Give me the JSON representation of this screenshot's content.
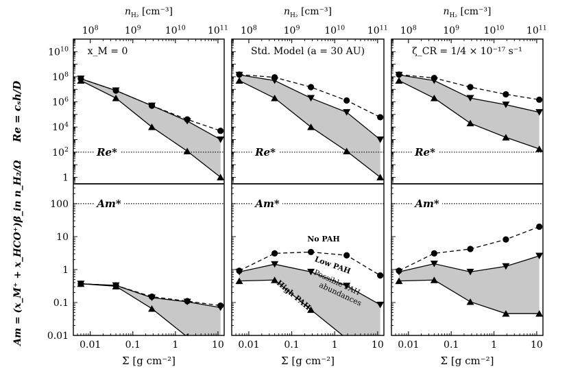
{
  "chart_data": {
    "type": "line",
    "axes_text": {
      "top_xlabel_main": "n",
      "top_xlabel_sub": "H₂",
      "top_xlabel_unit": "[cm⁻³]",
      "top_ticks": [
        {
          "base": "10",
          "exp": "8",
          "n": 100000000.0
        },
        {
          "base": "10",
          "exp": "9",
          "n": 1000000000.0
        },
        {
          "base": "10",
          "exp": "10",
          "n": 10000000000.0
        },
        {
          "base": "10",
          "exp": "11",
          "n": 100000000000.0
        }
      ],
      "xlabel": "Σ [g cm⁻²]",
      "x_ticks": [
        "0.01",
        "0.1",
        "1",
        "10"
      ],
      "re_ylabel": "Re = cₛh/D",
      "am_ylabel": "Am = (x_M⁺ + x_HCO⁺)β_in n_H₂/Ω",
      "re_ticks": [
        {
          "v": 10000000000.0,
          "base": "10",
          "exp": "10"
        },
        {
          "v": 100000000.0,
          "base": "10",
          "exp": "8"
        },
        {
          "v": 1000000.0,
          "base": "10",
          "exp": "6"
        },
        {
          "v": 10000.0,
          "base": "10",
          "exp": "4"
        },
        {
          "v": 100.0,
          "base": "10",
          "exp": "2"
        },
        {
          "v": 1,
          "base": "1",
          "exp": ""
        }
      ],
      "am_ticks": [
        {
          "v": 100,
          "label": "100"
        },
        {
          "v": 10,
          "label": "10"
        },
        {
          "v": 1,
          "label": "1"
        },
        {
          "v": 0.1,
          "label": "0.1"
        },
        {
          "v": 0.01,
          "label": "0.01"
        }
      ]
    },
    "x_scale": "log",
    "xlim": [
      0.004,
      14
    ],
    "re_ylim": [
      0.3,
      100000000000.0
    ],
    "am_ylim": [
      0.01,
      400
    ],
    "sigma": [
      0.006,
      0.04,
      0.28,
      1.9,
      11.5
    ],
    "nh2_per_sigma": 10000000000.0,
    "thresholds": {
      "re_star": 100,
      "am_star": 100,
      "re_star_label": "Re*",
      "am_star_label": "Am*"
    },
    "fill_color": "#c8c8c8",
    "panels": [
      {
        "title": "x_M = 0",
        "re": {
          "no_pah": [
            70000000.0,
            8000000.0,
            500000.0,
            40000.0,
            5000.0
          ],
          "low_pah": [
            70000000.0,
            8000000.0,
            500000.0,
            30000.0,
            1000.0
          ],
          "high_pah": [
            50000000.0,
            2000000.0,
            10000.0,
            120,
            1
          ]
        },
        "am": {
          "no_pah": [
            0.37,
            0.33,
            0.15,
            0.11,
            0.08
          ],
          "low_pah": [
            0.37,
            0.33,
            0.14,
            0.105,
            0.07
          ],
          "high_pah": [
            0.37,
            0.31,
            0.065,
            0.009,
            0.0015
          ]
        }
      },
      {
        "title": "Std. Model (a = 30 AU)",
        "re": {
          "no_pah": [
            150000000.0,
            90000000.0,
            15000000.0,
            1300000.0,
            60000.0
          ],
          "low_pah": [
            140000000.0,
            50000000.0,
            2000000.0,
            150000.0,
            1000.0
          ],
          "high_pah": [
            50000000.0,
            2000000.0,
            10000.0,
            120,
            1
          ]
        },
        "am": {
          "no_pah": [
            0.92,
            3.1,
            3.4,
            2.7,
            0.66
          ],
          "low_pah": [
            0.85,
            1.45,
            0.85,
            0.32,
            0.085
          ],
          "high_pah": [
            0.45,
            0.48,
            0.06,
            0.008,
            0.001
          ]
        },
        "annotations": {
          "no_pah": "No PAH",
          "low_pah": "Low PAH",
          "high_pah": "High PAH",
          "possible_1": "Possible PAH",
          "possible_2": "abundances"
        }
      },
      {
        "title": "ζ_CR = 1/4 × 10⁻¹⁷ s⁻¹",
        "re": {
          "no_pah": [
            150000000.0,
            80000000.0,
            15000000.0,
            4000000.0,
            1500000.0
          ],
          "low_pah": [
            140000000.0,
            50000000.0,
            2000000.0,
            600000.0,
            150000.0
          ],
          "high_pah": [
            50000000.0,
            2000000.0,
            20000.0,
            1500.0,
            180
          ]
        },
        "am": {
          "no_pah": [
            0.92,
            3.1,
            4.2,
            8.2,
            20
          ],
          "low_pah": [
            0.85,
            1.5,
            0.85,
            1.25,
            2.6
          ],
          "high_pah": [
            0.45,
            0.48,
            0.105,
            0.046,
            0.046
          ]
        }
      }
    ]
  }
}
